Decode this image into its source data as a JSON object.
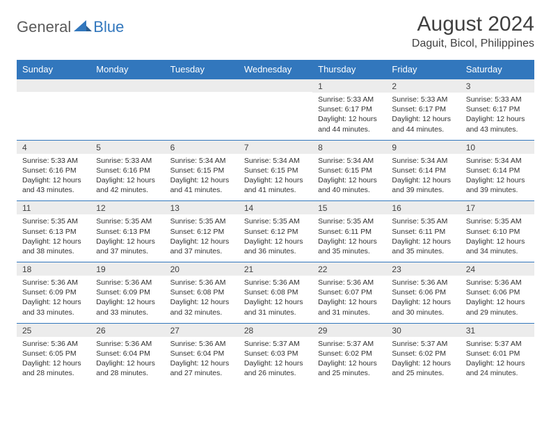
{
  "brand": {
    "general": "General",
    "blue": "Blue"
  },
  "title": "August 2024",
  "location": "Daguit, Bicol, Philippines",
  "colors": {
    "header_bg": "#3277bd",
    "header_text": "#ffffff",
    "daynum_bg": "#ececec",
    "text": "#303030",
    "border": "#3277bd"
  },
  "fonts": {
    "title_size": 30,
    "location_size": 16,
    "header_size": 13,
    "daynum_size": 12,
    "body_size": 10.5
  },
  "day_headers": [
    "Sunday",
    "Monday",
    "Tuesday",
    "Wednesday",
    "Thursday",
    "Friday",
    "Saturday"
  ],
  "weeks": [
    [
      null,
      null,
      null,
      null,
      {
        "n": "1",
        "sr": "5:33 AM",
        "ss": "6:17 PM",
        "dl": "12 hours and 44 minutes."
      },
      {
        "n": "2",
        "sr": "5:33 AM",
        "ss": "6:17 PM",
        "dl": "12 hours and 44 minutes."
      },
      {
        "n": "3",
        "sr": "5:33 AM",
        "ss": "6:17 PM",
        "dl": "12 hours and 43 minutes."
      }
    ],
    [
      {
        "n": "4",
        "sr": "5:33 AM",
        "ss": "6:16 PM",
        "dl": "12 hours and 43 minutes."
      },
      {
        "n": "5",
        "sr": "5:33 AM",
        "ss": "6:16 PM",
        "dl": "12 hours and 42 minutes."
      },
      {
        "n": "6",
        "sr": "5:34 AM",
        "ss": "6:15 PM",
        "dl": "12 hours and 41 minutes."
      },
      {
        "n": "7",
        "sr": "5:34 AM",
        "ss": "6:15 PM",
        "dl": "12 hours and 41 minutes."
      },
      {
        "n": "8",
        "sr": "5:34 AM",
        "ss": "6:15 PM",
        "dl": "12 hours and 40 minutes."
      },
      {
        "n": "9",
        "sr": "5:34 AM",
        "ss": "6:14 PM",
        "dl": "12 hours and 39 minutes."
      },
      {
        "n": "10",
        "sr": "5:34 AM",
        "ss": "6:14 PM",
        "dl": "12 hours and 39 minutes."
      }
    ],
    [
      {
        "n": "11",
        "sr": "5:35 AM",
        "ss": "6:13 PM",
        "dl": "12 hours and 38 minutes."
      },
      {
        "n": "12",
        "sr": "5:35 AM",
        "ss": "6:13 PM",
        "dl": "12 hours and 37 minutes."
      },
      {
        "n": "13",
        "sr": "5:35 AM",
        "ss": "6:12 PM",
        "dl": "12 hours and 37 minutes."
      },
      {
        "n": "14",
        "sr": "5:35 AM",
        "ss": "6:12 PM",
        "dl": "12 hours and 36 minutes."
      },
      {
        "n": "15",
        "sr": "5:35 AM",
        "ss": "6:11 PM",
        "dl": "12 hours and 35 minutes."
      },
      {
        "n": "16",
        "sr": "5:35 AM",
        "ss": "6:11 PM",
        "dl": "12 hours and 35 minutes."
      },
      {
        "n": "17",
        "sr": "5:35 AM",
        "ss": "6:10 PM",
        "dl": "12 hours and 34 minutes."
      }
    ],
    [
      {
        "n": "18",
        "sr": "5:36 AM",
        "ss": "6:09 PM",
        "dl": "12 hours and 33 minutes."
      },
      {
        "n": "19",
        "sr": "5:36 AM",
        "ss": "6:09 PM",
        "dl": "12 hours and 33 minutes."
      },
      {
        "n": "20",
        "sr": "5:36 AM",
        "ss": "6:08 PM",
        "dl": "12 hours and 32 minutes."
      },
      {
        "n": "21",
        "sr": "5:36 AM",
        "ss": "6:08 PM",
        "dl": "12 hours and 31 minutes."
      },
      {
        "n": "22",
        "sr": "5:36 AM",
        "ss": "6:07 PM",
        "dl": "12 hours and 31 minutes."
      },
      {
        "n": "23",
        "sr": "5:36 AM",
        "ss": "6:06 PM",
        "dl": "12 hours and 30 minutes."
      },
      {
        "n": "24",
        "sr": "5:36 AM",
        "ss": "6:06 PM",
        "dl": "12 hours and 29 minutes."
      }
    ],
    [
      {
        "n": "25",
        "sr": "5:36 AM",
        "ss": "6:05 PM",
        "dl": "12 hours and 28 minutes."
      },
      {
        "n": "26",
        "sr": "5:36 AM",
        "ss": "6:04 PM",
        "dl": "12 hours and 28 minutes."
      },
      {
        "n": "27",
        "sr": "5:36 AM",
        "ss": "6:04 PM",
        "dl": "12 hours and 27 minutes."
      },
      {
        "n": "28",
        "sr": "5:37 AM",
        "ss": "6:03 PM",
        "dl": "12 hours and 26 minutes."
      },
      {
        "n": "29",
        "sr": "5:37 AM",
        "ss": "6:02 PM",
        "dl": "12 hours and 25 minutes."
      },
      {
        "n": "30",
        "sr": "5:37 AM",
        "ss": "6:02 PM",
        "dl": "12 hours and 25 minutes."
      },
      {
        "n": "31",
        "sr": "5:37 AM",
        "ss": "6:01 PM",
        "dl": "12 hours and 24 minutes."
      }
    ]
  ],
  "labels": {
    "sunrise": "Sunrise:",
    "sunset": "Sunset:",
    "daylight": "Daylight:"
  }
}
